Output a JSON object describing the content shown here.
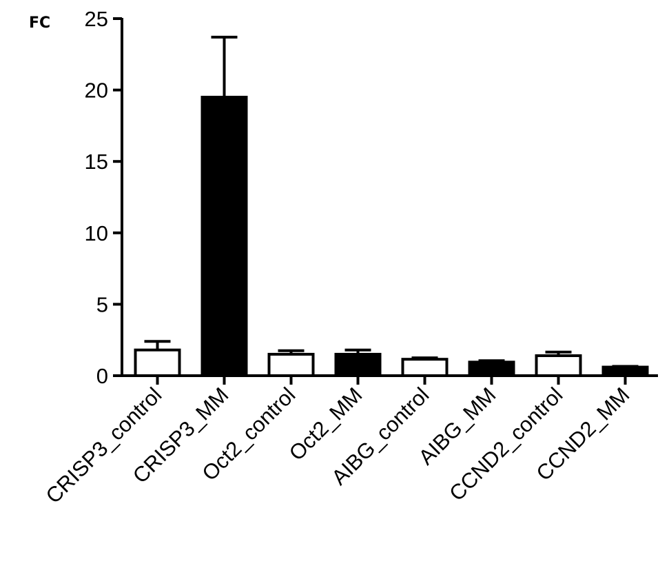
{
  "chart_data": {
    "type": "bar",
    "title": "",
    "xlabel": "",
    "ylabel": "FC",
    "ylim": [
      0,
      25
    ],
    "yticks": [
      0,
      5,
      10,
      15,
      20,
      25
    ],
    "grid": false,
    "legend": "none",
    "categories": [
      "CRISP3_control",
      "CRISP3_MM",
      "Oct2_control",
      "Oct2_MM",
      "AIBG_control",
      "AIBG_MM",
      "CCND2_control",
      "CCND2_MM"
    ],
    "values": [
      1.8,
      19.5,
      1.5,
      1.5,
      1.15,
      0.95,
      1.4,
      0.6
    ],
    "errors": [
      0.6,
      4.2,
      0.25,
      0.3,
      0.1,
      0.1,
      0.25,
      0.05
    ],
    "fills": [
      "#ffffff",
      "#000000",
      "#ffffff",
      "#000000",
      "#ffffff",
      "#000000",
      "#ffffff",
      "#000000"
    ],
    "colors": {
      "stroke": "#000000",
      "background": "#ffffff"
    }
  }
}
